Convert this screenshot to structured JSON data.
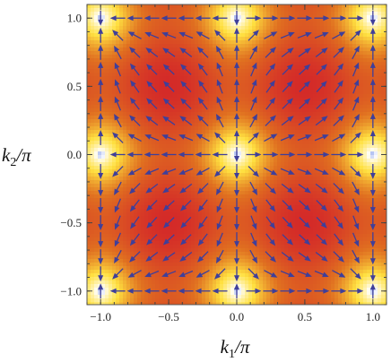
{
  "chart_data": {
    "type": "heatmap",
    "subtype": "density plot with vector field overlay",
    "xlabel_main": "k",
    "xlabel_sub": "1",
    "xlabel_tail": "/π",
    "ylabel_main": "k",
    "ylabel_sub": "2",
    "ylabel_tail": "/π",
    "xlim": [
      -1.1,
      1.1
    ],
    "ylim": [
      -1.1,
      1.1
    ],
    "x_ticks": [
      -1.0,
      -0.5,
      0.0,
      0.5,
      1.0
    ],
    "y_ticks": [
      -1.0,
      -0.5,
      0.0,
      0.5,
      1.0
    ],
    "x_tick_labels": [
      "−1.0",
      "−0.5",
      "0.0",
      "0.5",
      "1.0"
    ],
    "y_tick_labels": [
      "−1.0",
      "−0.5",
      "0.0",
      "0.5",
      "1.0"
    ],
    "colormap": [
      "#4a6fe0",
      "#ffffff",
      "#ffe040",
      "#e07020",
      "#d42a28"
    ],
    "arrow_color": "#3f3f9a",
    "frame_color": "#555555",
    "low_points": [
      [
        0,
        1
      ],
      [
        0,
        -1
      ],
      [
        -1,
        0
      ],
      [
        1,
        0
      ]
    ],
    "vector_grid_steps": 17
  }
}
